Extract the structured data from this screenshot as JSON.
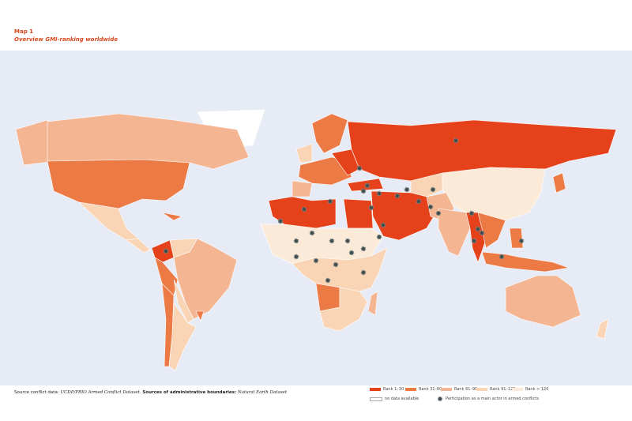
{
  "header": {
    "label": "Map 1",
    "title": "Overview GMI-ranking worldwide"
  },
  "legend": {
    "ranks": [
      {
        "label": "Rank 1–30",
        "color": "#e5421c"
      },
      {
        "label": "Rank 31–60",
        "color": "#ec7a45"
      },
      {
        "label": "Rank 61–90",
        "color": "#f4b592"
      },
      {
        "label": "Rank 91–120",
        "color": "#f9d5b6"
      },
      {
        "label": "Rank > 120",
        "color": "#fcead8"
      }
    ],
    "no_data": "no data available",
    "conflict": "Participation as a main actor in armed conflicts"
  },
  "footer": {
    "parts": [
      "Source conflict data:",
      "UCDP/PRIO Armed Conflict Dataset.",
      "Sources of administrative boundaries:",
      "Natural Earth Dataset"
    ]
  }
}
